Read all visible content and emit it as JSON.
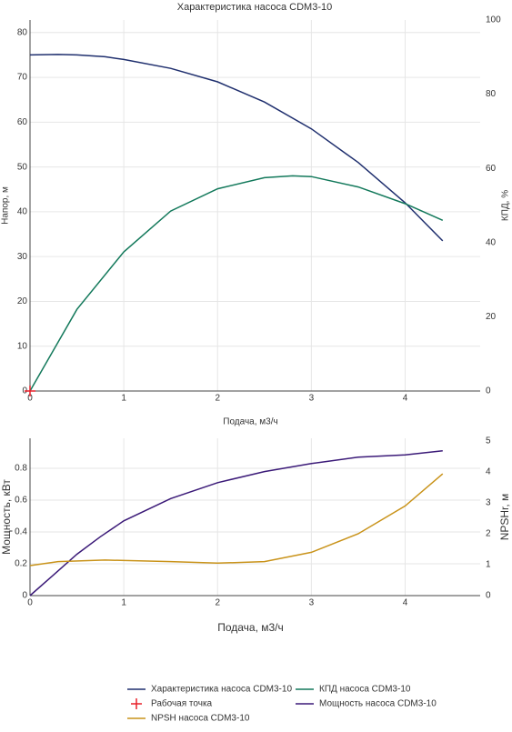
{
  "chart_data": [
    {
      "type": "line",
      "title": "Характеристика насоса CDM3-10",
      "x_label": "Подача, м3/ч",
      "y_label": "Напор, м",
      "y2_label": "КПД, %",
      "xlim": [
        0,
        4.8
      ],
      "xticks": [
        0,
        1,
        2,
        3,
        4
      ],
      "ylim": [
        0,
        82.8
      ],
      "yticks": [
        0,
        10,
        20,
        30,
        40,
        50,
        60,
        70,
        80
      ],
      "y2lim": [
        0,
        100
      ],
      "y2ticks": [
        0,
        20,
        40,
        60,
        80,
        100
      ],
      "grid": true,
      "series": [
        {
          "name": "Характеристика насоса CDM3-10",
          "color": "#1f2f6e",
          "x": [
            0,
            0.3,
            0.5,
            0.8,
            1,
            1.5,
            2,
            2.5,
            3,
            3.5,
            4,
            4.4
          ],
          "values": [
            75,
            75.1,
            75,
            74.6,
            74,
            72,
            69,
            64.5,
            58.5,
            51,
            42,
            33.5
          ]
        },
        {
          "name": "КПД насоса CDM3-10",
          "color": "#13795b",
          "axis": "y2",
          "x": [
            0,
            0.5,
            1,
            1.5,
            2,
            2.5,
            2.8,
            3,
            3.5,
            4,
            4.4
          ],
          "values": [
            0,
            22,
            37.5,
            48.5,
            54.5,
            57.5,
            58,
            57.8,
            55,
            50.5,
            46
          ]
        },
        {
          "name": "Рабочая точка",
          "color": "#e8202a",
          "mode": "markers",
          "x": [
            0
          ],
          "values": [
            0
          ]
        }
      ]
    },
    {
      "type": "line",
      "x_label": "Подача, м3/ч",
      "y_label": "Мощность, кВт",
      "y2_label": "NPSHr, м",
      "xlim": [
        0,
        4.8
      ],
      "xticks": [
        0,
        1,
        2,
        3,
        4
      ],
      "ylim": [
        0,
        0.989
      ],
      "yticks": [
        0,
        0.2,
        0.4,
        0.6,
        0.8
      ],
      "y2lim": [
        0,
        5.09
      ],
      "y2ticks": [
        0,
        1,
        2,
        3,
        4,
        5
      ],
      "grid": true,
      "series": [
        {
          "name": "Мощность насоса CDM3-10",
          "color": "#3b1a78",
          "x": [
            0,
            0.25,
            0.5,
            0.75,
            1,
            1.5,
            2,
            2.5,
            3,
            3.5,
            4,
            4.4
          ],
          "values": [
            0,
            0.13,
            0.26,
            0.37,
            0.47,
            0.61,
            0.71,
            0.78,
            0.83,
            0.87,
            0.885,
            0.91
          ]
        },
        {
          "name": "NPSH насоса CDM3-10",
          "color": "#c9931a",
          "axis": "y2",
          "x": [
            0,
            0.3,
            0.8,
            1.5,
            2,
            2.5,
            3,
            3.5,
            4,
            4.4
          ],
          "values": [
            0.97,
            1.1,
            1.15,
            1.1,
            1.05,
            1.1,
            1.4,
            2.0,
            2.9,
            3.94
          ]
        }
      ]
    }
  ]
}
